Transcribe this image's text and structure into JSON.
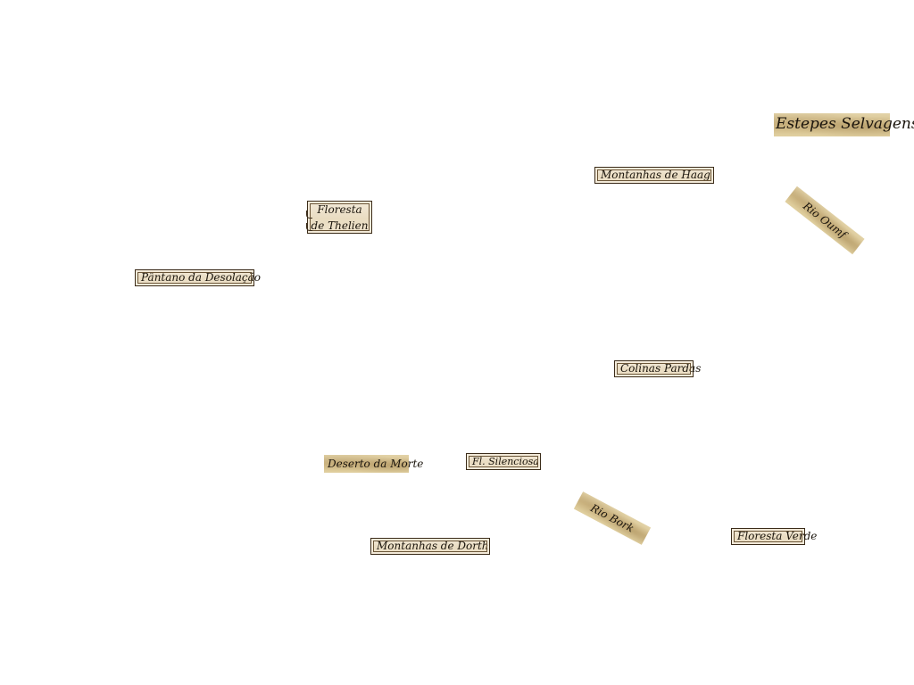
{
  "map_labels": {
    "estepes_selvagens": "Estepes Selvagens",
    "montanhas_de_haag": "Montanhas de Haag",
    "rio_oumf": "Rio Oumf",
    "floresta_de_thelien_line1": "Floresta",
    "floresta_de_thelien_line2": "de Thelien",
    "pantano_da_desolacao": "Pântano da Desolação",
    "colinas_pardas": "Colinas Pardas",
    "deserto_da_morte": "Deserto da Morte",
    "fl_silenciosa": "Fl. Silenciosa",
    "rio_bork": "Rio Bork",
    "floresta_verde": "Floresta Verde",
    "montanhas_de_dorth": "Montanhas de Dorth"
  },
  "colors": {
    "background": "#ffffff",
    "parchment": "#efe3cc",
    "scrap_parchment": "#d9c592",
    "ink": "#1a140c"
  }
}
